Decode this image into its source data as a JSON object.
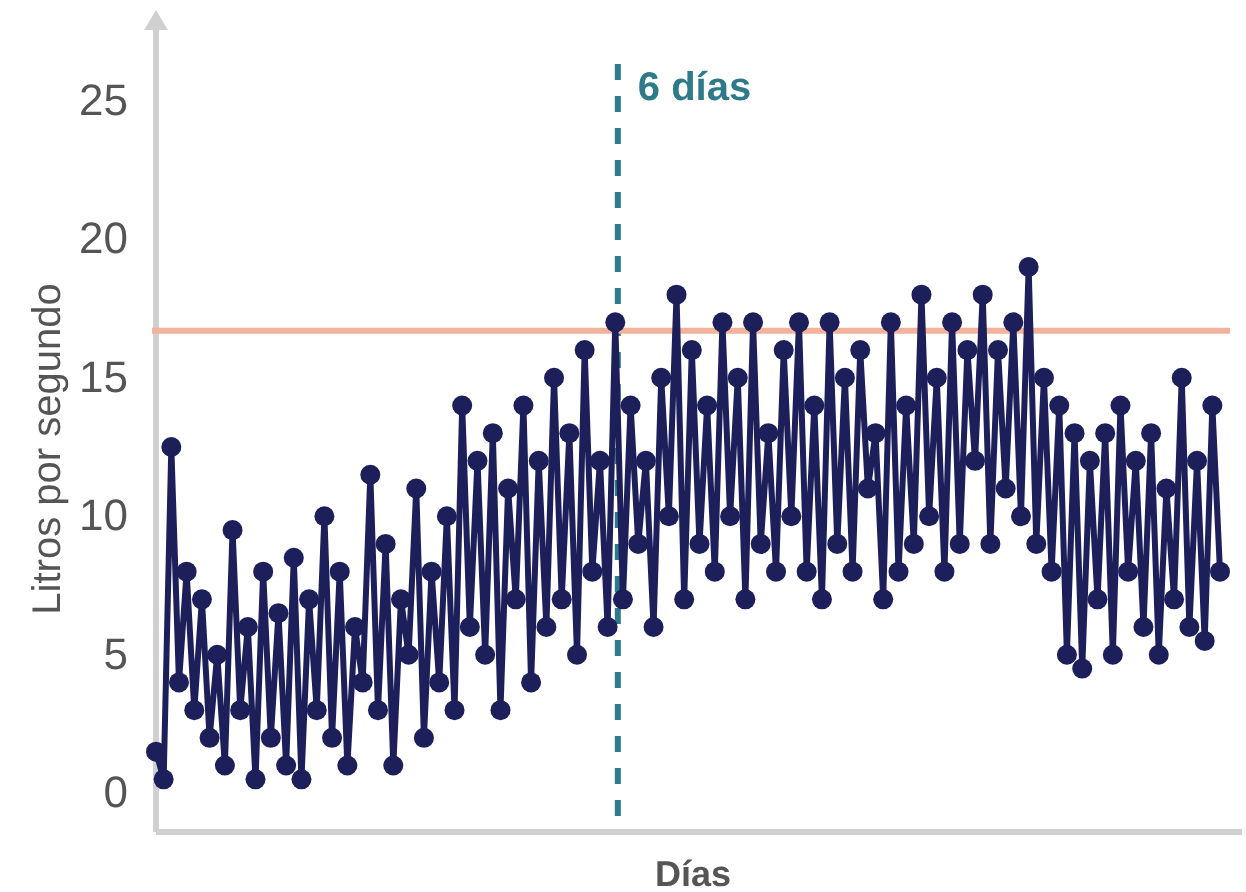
{
  "chart_data": {
    "type": "line",
    "xlabel": "Días",
    "ylabel": "Litros por segundo",
    "ylim": [
      -1.4,
      27.7
    ],
    "yticks": [
      0,
      5,
      10,
      15,
      20,
      25
    ],
    "tick_labels": "y",
    "grid": false,
    "marker": "circle",
    "line_style": "solid",
    "categories": [
      null,
      null,
      null,
      null,
      null,
      null,
      null,
      null,
      null,
      null,
      null,
      null,
      null,
      null,
      null,
      null,
      null,
      null,
      null,
      null,
      null,
      null,
      null,
      null,
      null,
      null,
      null,
      null,
      null,
      null,
      null,
      null,
      null,
      null,
      null,
      null,
      null,
      null,
      null,
      null,
      null,
      null,
      null,
      null,
      null,
      null,
      null,
      null,
      null,
      null,
      null,
      null,
      null,
      null,
      null,
      null,
      null,
      null,
      null,
      null,
      null,
      null,
      null,
      null,
      null,
      null,
      null,
      null,
      null,
      null,
      null,
      null,
      null,
      null,
      null,
      null,
      null,
      null,
      null,
      null,
      null,
      null,
      null,
      null,
      null,
      null,
      null,
      null,
      null,
      null,
      null,
      null,
      null,
      null,
      null,
      null,
      null,
      null,
      null,
      null,
      null,
      null,
      null,
      null,
      null,
      null,
      null,
      null,
      null,
      null,
      null,
      null,
      null,
      null,
      null,
      null,
      null,
      null,
      null,
      null,
      null,
      null,
      null,
      null,
      null,
      null,
      null,
      null,
      null,
      null,
      null,
      null,
      null,
      null,
      null,
      null,
      null,
      null,
      null,
      null
    ],
    "series": [
      {
        "color": "#1d1f5a",
        "values": [
          1.5,
          0.5,
          12.5,
          4,
          8,
          3,
          7,
          2,
          5,
          1,
          9.5,
          3,
          6,
          0.5,
          8,
          2,
          6.5,
          1,
          8.5,
          0.5,
          7,
          3,
          10,
          2,
          8,
          1,
          6,
          4,
          11.5,
          3,
          9,
          1,
          7,
          5,
          11,
          2,
          8,
          4,
          10,
          3,
          14,
          6,
          12,
          5,
          13,
          3,
          11,
          7,
          14,
          4,
          12,
          6,
          15,
          7,
          13,
          5,
          16,
          8,
          12,
          6,
          17,
          7,
          14,
          9,
          12,
          6,
          15,
          10,
          18,
          7,
          16,
          9,
          14,
          8,
          17,
          10,
          15,
          7,
          17,
          9,
          13,
          8,
          16,
          10,
          17,
          8,
          14,
          7,
          17,
          9,
          15,
          8,
          16,
          11,
          13,
          7,
          17,
          8,
          14,
          9,
          18,
          10,
          15,
          8,
          17,
          9,
          16,
          12,
          18,
          9,
          16,
          11,
          17,
          10,
          19,
          9,
          15,
          8,
          14,
          5,
          13,
          4.5,
          12,
          7,
          13,
          5,
          14,
          8,
          12,
          6,
          13,
          5,
          11,
          7,
          15,
          6,
          12,
          5.5,
          14,
          8
        ]
      }
    ],
    "annotations": [
      "6 días"
    ],
    "ref_lines": [
      {
        "axis": "y",
        "value": 16.7,
        "color": "#f2b29c",
        "line_style": "solid"
      }
    ]
  }
}
